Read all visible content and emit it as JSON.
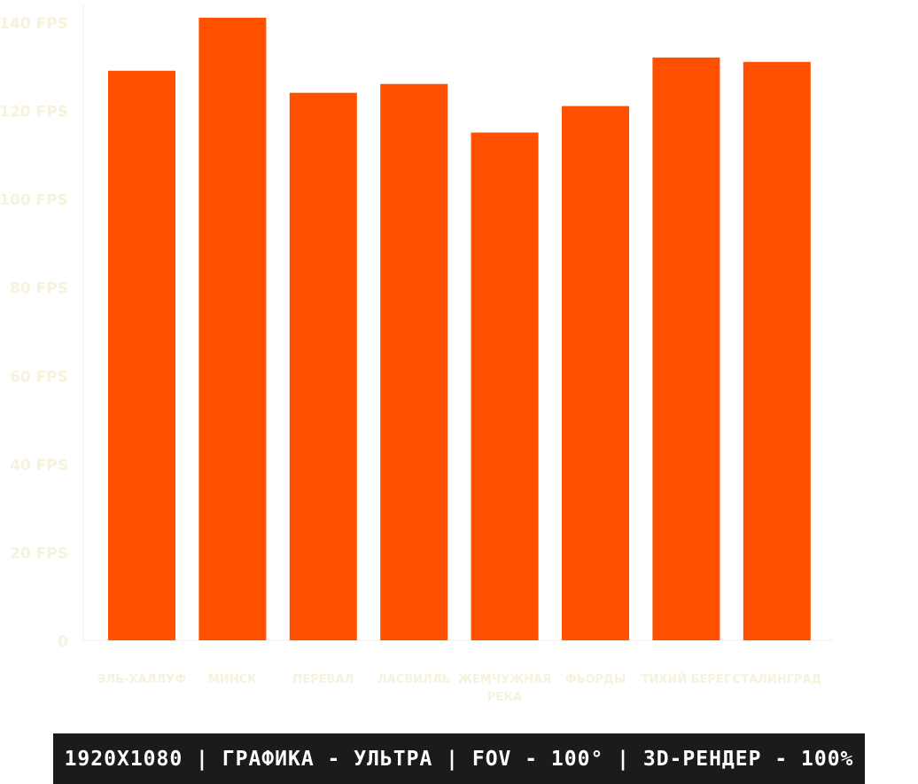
{
  "chart_data": {
    "type": "bar",
    "categories": [
      "ЭЛЬ-ХАЛЛУФ",
      "МИНСК",
      "ПЕРЕВАЛ",
      "ЛАСВИЛЛЬ",
      "ЖЕМЧУЖНАЯ РЕКА",
      "ФЬОРДЫ",
      "ТИХИЙ БЕРЕГ",
      "СТАЛИНГРАД"
    ],
    "values": [
      129,
      141,
      124,
      126,
      115,
      121,
      132,
      131
    ],
    "yticks": [
      "0",
      "20 FPS",
      "40 FPS",
      "60 FPS",
      "80 FPS",
      "100 FPS",
      "120 FPS",
      "140 FPS"
    ],
    "ylim": [
      0,
      140
    ],
    "grid": false,
    "colors": {
      "bar": "#ff5000",
      "axis_text": "#f7f2dc",
      "axis_line": "#f5f0dc"
    }
  },
  "footer": {
    "settings": "1920X1080 | ГРАФИКА - УЛЬТРА | FOV - 100° | 3D-РЕНДЕР - 100%"
  }
}
